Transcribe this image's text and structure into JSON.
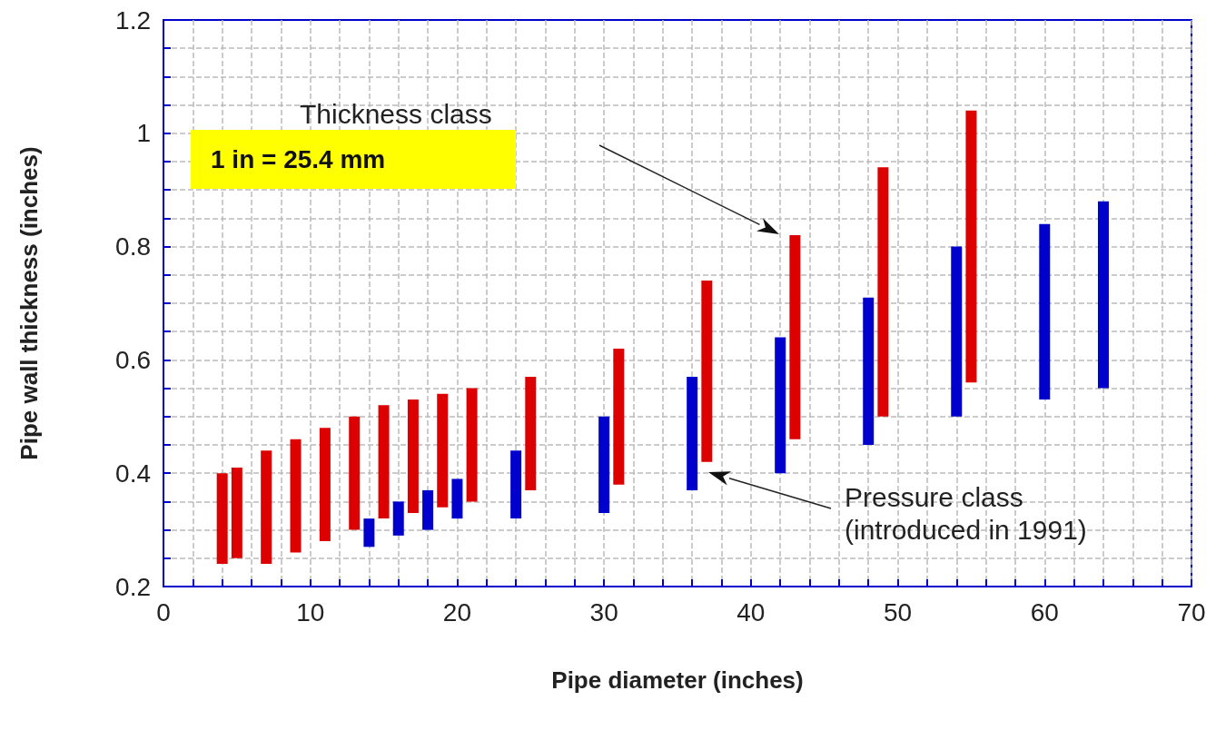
{
  "chart_data": {
    "type": "bar",
    "xlabel": "Pipe diameter (inches)",
    "ylabel": "Pipe wall thickness (inches)",
    "xlim": [
      0,
      70
    ],
    "xticks": [
      0,
      10,
      20,
      30,
      40,
      50,
      60,
      70
    ],
    "ylim": [
      0.2,
      1.2
    ],
    "yticks": [
      0.2,
      0.4,
      0.6,
      0.8,
      {
        "value": 1,
        "label": "1"
      },
      1.2
    ],
    "grid": true,
    "series": [
      {
        "color": "#dd0000",
        "x": [
          4,
          5,
          7,
          9,
          11,
          13,
          15,
          17,
          19,
          21,
          25,
          31,
          37,
          43,
          49,
          55
        ],
        "base": [
          0.24,
          0.25,
          0.24,
          0.26,
          0.28,
          0.3,
          0.32,
          0.33,
          0.34,
          0.35,
          0.37,
          0.38,
          0.42,
          0.46,
          0.5,
          0.56
        ],
        "values": [
          0.16,
          0.16,
          0.2,
          0.2,
          0.2,
          0.2,
          0.2,
          0.2,
          0.2,
          0.2,
          0.2,
          0.24,
          0.32,
          0.36,
          0.44,
          0.48
        ]
      },
      {
        "color": "#0000cc",
        "x": [
          14,
          16,
          18,
          20,
          24,
          30,
          36,
          42,
          48,
          54,
          60,
          64
        ],
        "base": [
          0.27,
          0.29,
          0.3,
          0.32,
          0.32,
          0.33,
          0.37,
          0.4,
          0.45,
          0.5,
          0.53,
          0.55
        ],
        "values": [
          0.05,
          0.06,
          0.07,
          0.07,
          0.12,
          0.17,
          0.2,
          0.24,
          0.26,
          0.3,
          0.31,
          0.33
        ]
      }
    ],
    "annotations": [
      "Thickness class",
      "Pressure class\n(introduced in 1991)",
      "1 in = 25.4 mm"
    ]
  }
}
